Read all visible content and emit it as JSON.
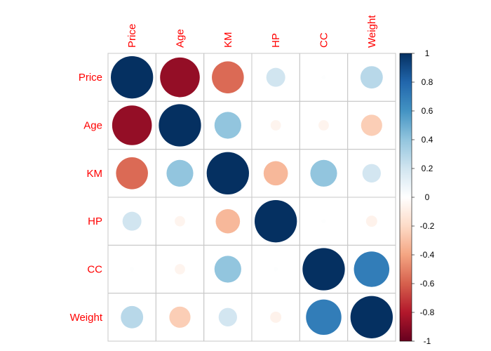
{
  "theme": {
    "label_color": "#ff0000",
    "grid_color": "#c8c8c8",
    "background": "#ffffff",
    "palette": {
      "low": "#67001f",
      "mid_low": "#d6604d",
      "mid": "#f7f7f7",
      "mid_high": "#4393c3",
      "high": "#053061"
    }
  },
  "chart_data": {
    "type": "heatmap",
    "variables": [
      "Price",
      "Age",
      "KM",
      "HP",
      "CC",
      "Weight"
    ],
    "matrix": [
      [
        1.0,
        -0.88,
        -0.57,
        0.2,
        0.01,
        0.28
      ],
      [
        -0.88,
        1.0,
        0.4,
        -0.06,
        -0.06,
        -0.25
      ],
      [
        -0.57,
        0.4,
        1.0,
        -0.33,
        0.4,
        0.19
      ],
      [
        0.2,
        -0.06,
        -0.33,
        1.0,
        0.01,
        -0.07
      ],
      [
        0.01,
        -0.06,
        0.4,
        0.01,
        1.0,
        0.7
      ],
      [
        0.28,
        -0.25,
        0.19,
        -0.07,
        0.7,
        1.0
      ]
    ],
    "marker": "circle",
    "colorbar": {
      "min": -1,
      "max": 1,
      "ticks": [
        "1",
        "0.8",
        "0.6",
        "0.4",
        "0.2",
        "0",
        "-0.2",
        "-0.4",
        "-0.6",
        "-0.8",
        "-1"
      ]
    }
  }
}
